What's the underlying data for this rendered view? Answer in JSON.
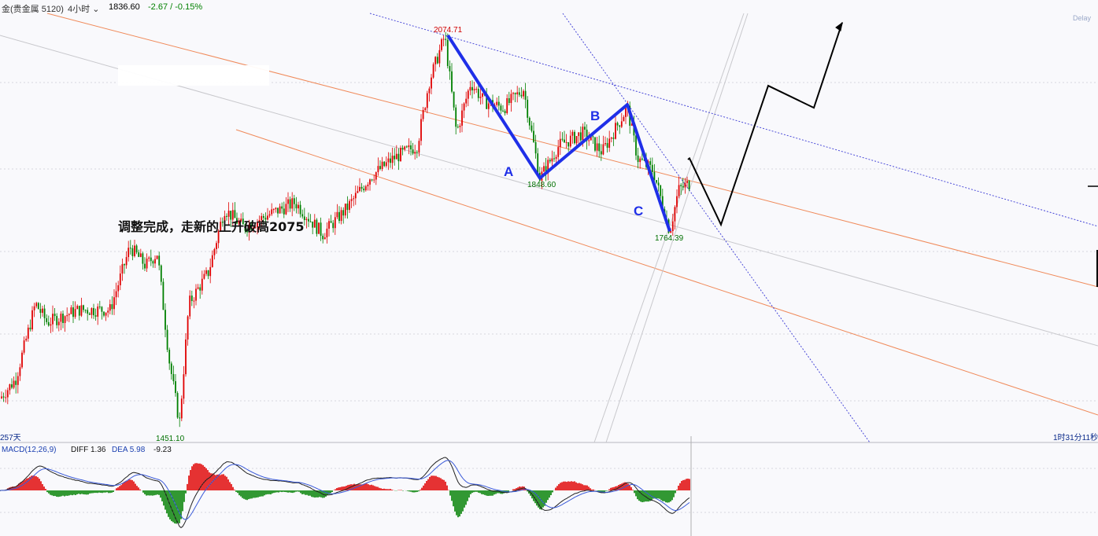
{
  "header": {
    "symbol": "金(贵金属 5120)",
    "period": "4小时",
    "price": "1836.60",
    "change": "-2.67 / -0.15%",
    "delay": "Delay"
  },
  "annotation": {
    "text": "调整完成，走新的上升破高2075"
  },
  "time_left": "257天",
  "time_right": "1时31分11秒",
  "macd": {
    "title": "MACD(12,26,9)",
    "diff": "DIFF 1.36",
    "dea": "DEA 5.98",
    "macd": "-9.23"
  },
  "colors": {
    "up": "#e00000",
    "down": "#008000",
    "wave": "#1f2fe8",
    "forecast": "#000000",
    "orange_line": "#f08a5a",
    "blue_dotted": "#4a4ad8",
    "gray_line": "#c8c8cc"
  },
  "chart_data": {
    "type": "candlestick",
    "y_range": [
      1420,
      2110
    ],
    "labels": [
      {
        "text": "2074.71",
        "value": 2074.71,
        "kind": "high"
      },
      {
        "text": "1848.60",
        "value": 1848.6,
        "kind": "low"
      },
      {
        "text": "1764.39",
        "value": 1764.39,
        "kind": "low"
      },
      {
        "text": "1451.10",
        "value": 1451.1,
        "kind": "low"
      }
    ],
    "wave_labels": [
      "A",
      "B",
      "C"
    ],
    "wave_points": [
      {
        "label": "",
        "value": 2074.71
      },
      {
        "label": "A",
        "value": 1848.6
      },
      {
        "label": "B",
        "value": 1965
      },
      {
        "label": "C",
        "value": 1764.39
      }
    ],
    "forecast_path": [
      1836.6,
      1880,
      1775,
      1995,
      1960,
      2095
    ]
  }
}
